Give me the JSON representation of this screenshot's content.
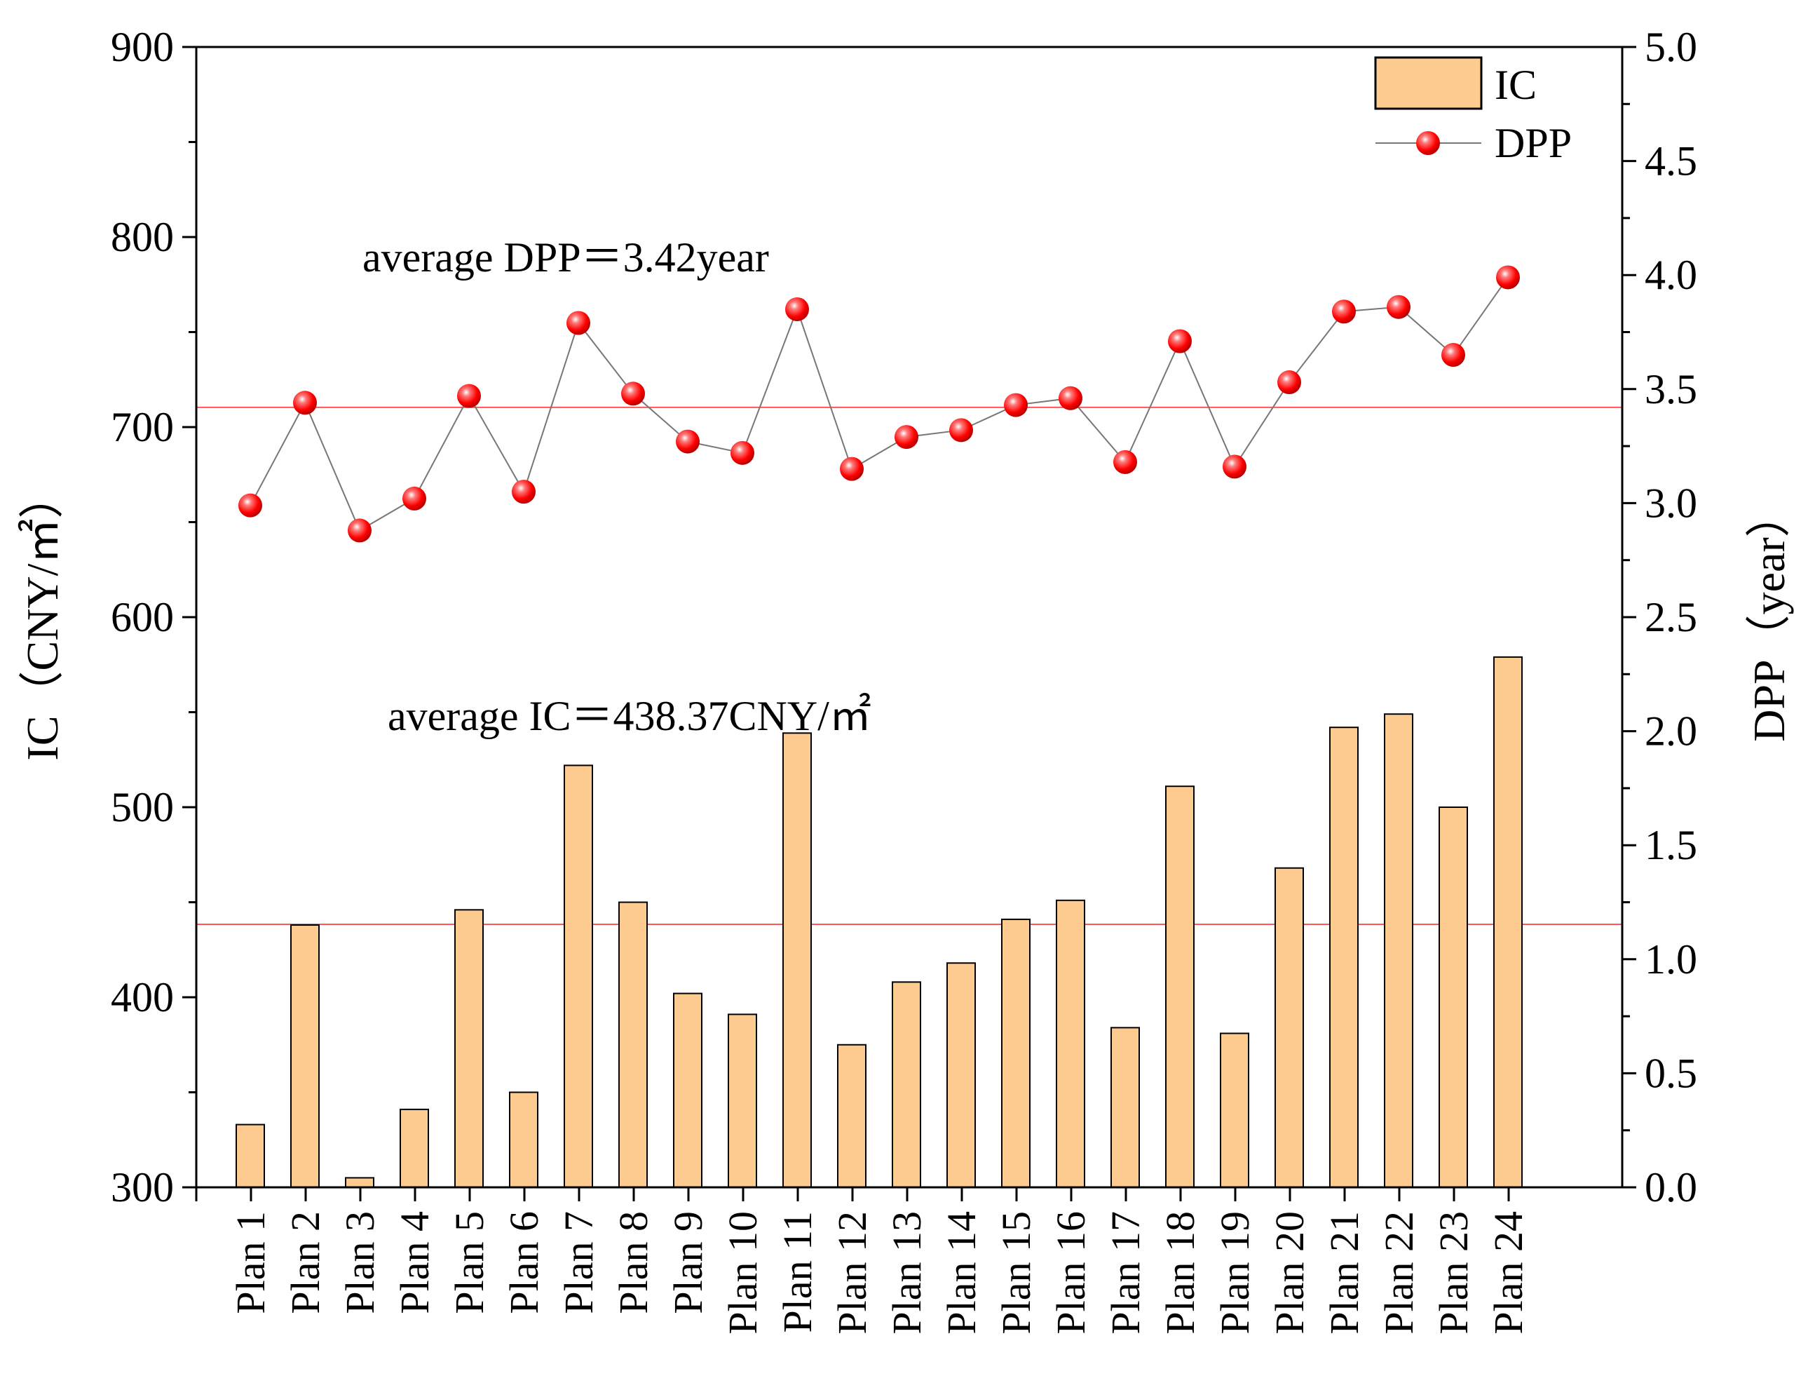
{
  "chart_data": {
    "type": "bar+line",
    "categories": [
      "Plan 1",
      "Plan 2",
      "Plan 3",
      "Plan 4",
      "Plan 5",
      "Plan 6",
      "Plan 7",
      "Plan 8",
      "Plan 9",
      "Plan 10",
      "Plan 11",
      "Plan 12",
      "Plan 13",
      "Plan 14",
      "Plan 15",
      "Plan 16",
      "Plan 17",
      "Plan 18",
      "Plan 19",
      "Plan 20",
      "Plan 21",
      "Plan 22",
      "Plan 23",
      "Plan 24"
    ],
    "series": [
      {
        "name": "IC",
        "type": "bar",
        "axis": "left",
        "color": "#FDCB8F",
        "values": [
          333,
          438,
          305,
          341,
          446,
          350,
          522,
          450,
          402,
          391,
          539,
          375,
          408,
          418,
          441,
          451,
          384,
          511,
          381,
          468,
          542,
          549,
          500,
          579
        ]
      },
      {
        "name": "DPP",
        "type": "line",
        "axis": "right",
        "color": "#FF0000",
        "values": [
          2.99,
          3.44,
          2.88,
          3.02,
          3.47,
          3.05,
          3.79,
          3.48,
          3.27,
          3.22,
          3.85,
          3.15,
          3.29,
          3.32,
          3.43,
          3.46,
          3.18,
          3.71,
          3.16,
          3.53,
          3.84,
          3.86,
          3.65,
          3.99
        ]
      }
    ],
    "y_left": {
      "label": "IC（CNY/㎡）",
      "ylim": [
        300,
        900
      ],
      "ticks": [
        "300",
        "400",
        "500",
        "600",
        "700",
        "800",
        "900"
      ]
    },
    "y_right": {
      "label": "DPP（year）",
      "ylim": [
        0,
        5
      ],
      "ticks": [
        "0.0",
        "0.5",
        "1.0",
        "1.5",
        "2.0",
        "2.5",
        "3.0",
        "3.5",
        "4.0",
        "4.5",
        "5.0"
      ]
    },
    "reference_lines": [
      {
        "name": "average-ic",
        "axis": "left",
        "value": 438.37,
        "color": "#FF5555"
      },
      {
        "name": "average-dpp",
        "axis": "right",
        "value": 3.42,
        "color": "#FF5555"
      }
    ],
    "annotations": {
      "average_dpp": "average DPP＝3.42year",
      "average_ic": "average IC＝438.37CNY/㎡"
    },
    "legend": {
      "placement": "top-right",
      "entries": [
        "IC",
        "DPP"
      ]
    },
    "grid": false
  }
}
